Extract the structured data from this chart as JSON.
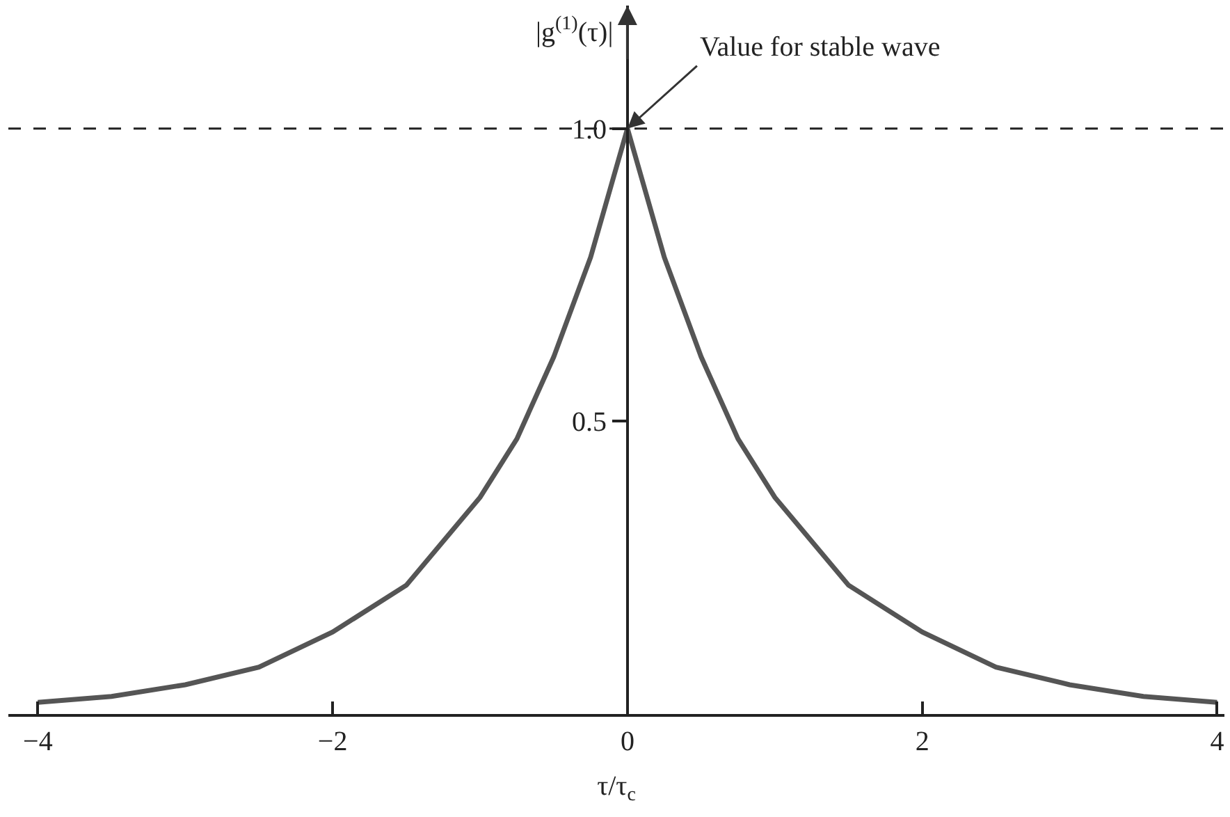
{
  "chart_data": {
    "type": "line",
    "xlabel": "τ/τ$_{c}$",
    "ylabel": "|g$^{(1)}$(τ)|",
    "x": [
      -4,
      -3.5,
      -3,
      -2.5,
      -2,
      -1.5,
      -1,
      -0.75,
      -0.5,
      -0.25,
      0,
      0.25,
      0.5,
      0.75,
      1,
      1.5,
      2,
      2.5,
      3,
      3.5,
      4
    ],
    "series": [
      {
        "color": "#555555",
        "values": [
          0.02,
          0.03,
          0.05,
          0.08,
          0.14,
          0.22,
          0.37,
          0.47,
          0.61,
          0.78,
          1.0,
          0.78,
          0.61,
          0.47,
          0.37,
          0.22,
          0.14,
          0.08,
          0.05,
          0.03,
          0.02
        ]
      }
    ],
    "xlim": [
      -4.2,
      4.05
    ],
    "ylim": [
      0,
      1.21
    ],
    "xticks": [
      {
        "value": -4,
        "label": "−4"
      },
      {
        "value": -2,
        "label": "−2"
      },
      0,
      2,
      4
    ],
    "yticks": [
      {
        "value": 0.5,
        "label": "0.5"
      },
      {
        "value": 1,
        "label": "1.0"
      }
    ],
    "ref_lines": [
      {
        "axis": "y",
        "value": 1,
        "line_style": "dashed",
        "color": "#222222"
      }
    ],
    "annotations": [
      {
        "text": "Value for stable wave",
        "x": 0,
        "y": 1
      }
    ],
    "marker": "none",
    "line_style": "solid"
  }
}
